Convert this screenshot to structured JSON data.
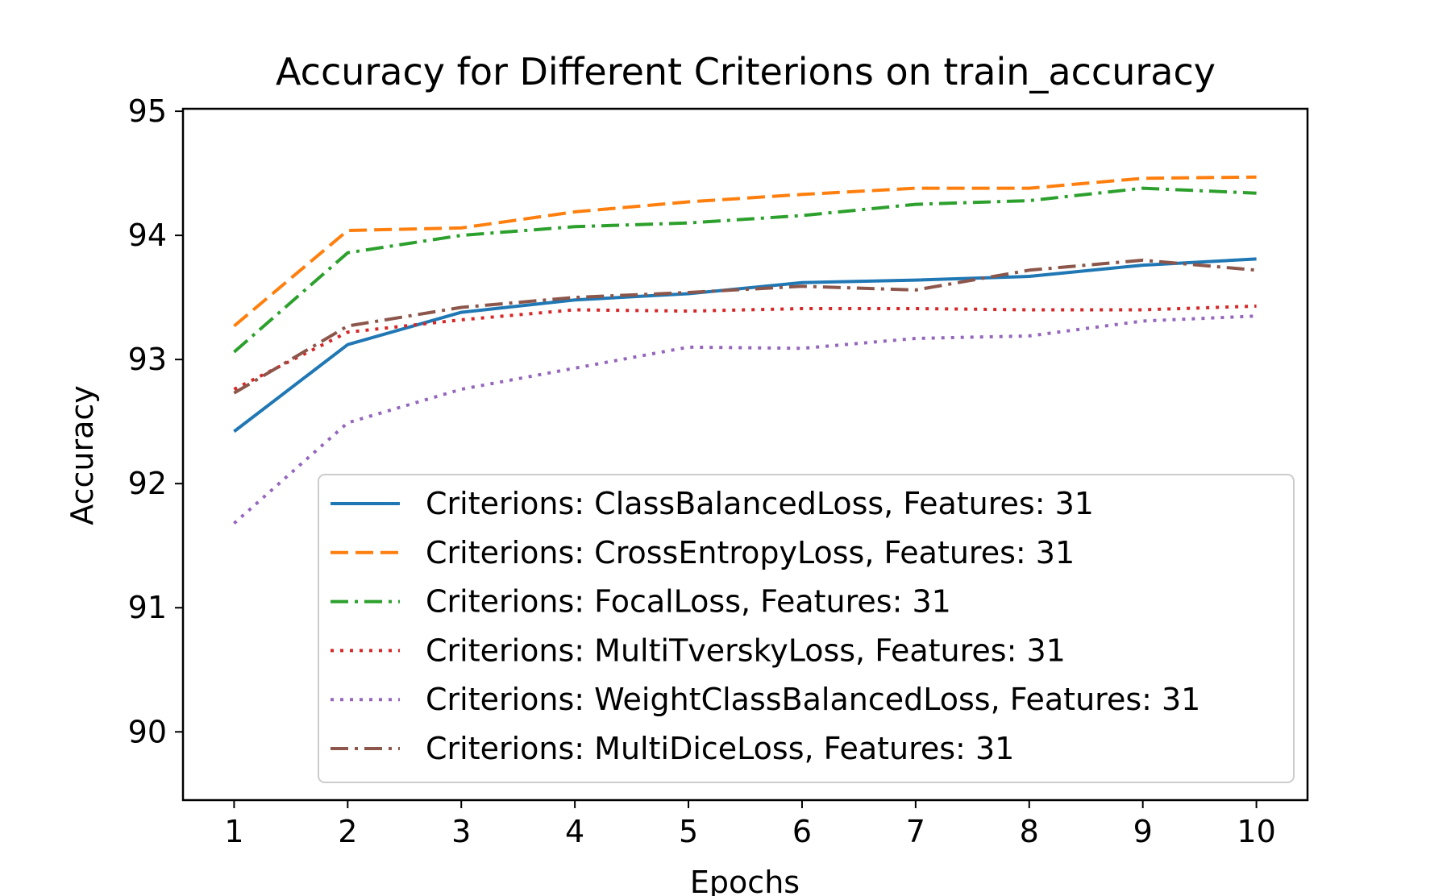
{
  "chart_data": {
    "type": "line",
    "title": "Accuracy for Different Criterions on train_accuracy",
    "xlabel": "Epochs",
    "ylabel": "Accuracy",
    "x": [
      1,
      2,
      3,
      4,
      5,
      6,
      7,
      8,
      9,
      10
    ],
    "xticks": [
      "1",
      "2",
      "3",
      "4",
      "5",
      "6",
      "7",
      "8",
      "9",
      "10"
    ],
    "yticks": [
      "90",
      "91",
      "92",
      "93",
      "94",
      "95"
    ],
    "xlim": [
      0.55,
      10.45
    ],
    "ylim": [
      89.45,
      95.02
    ],
    "grid": false,
    "legend_position": "lower-right",
    "series": [
      {
        "name": "Criterions: ClassBalancedLoss, Features: 31",
        "color": "#1f77b4",
        "dash": "solid",
        "values": [
          92.42,
          93.12,
          93.38,
          93.48,
          93.53,
          93.62,
          93.64,
          93.67,
          93.76,
          93.81
        ]
      },
      {
        "name": "Criterions: CrossEntropyLoss, Features: 31",
        "color": "#ff7f0e",
        "dash": "dashed",
        "values": [
          93.27,
          94.04,
          94.06,
          94.19,
          94.27,
          94.33,
          94.38,
          94.38,
          94.46,
          94.47
        ]
      },
      {
        "name": "Criterions: FocalLoss, Features: 31",
        "color": "#2ca02c",
        "dash": "dashdot",
        "values": [
          93.06,
          93.86,
          94.0,
          94.07,
          94.1,
          94.16,
          94.25,
          94.28,
          94.38,
          94.34
        ]
      },
      {
        "name": "Criterions: MultiTverskyLoss, Features: 31",
        "color": "#d62728",
        "dash": "dotted",
        "values": [
          92.76,
          93.22,
          93.32,
          93.4,
          93.39,
          93.41,
          93.41,
          93.4,
          93.4,
          93.43
        ]
      },
      {
        "name": "Criterions: WeightClassBalancedLoss, Features: 31",
        "color": "#9467bd",
        "dash": "dotted",
        "values": [
          91.68,
          92.49,
          92.76,
          92.93,
          93.1,
          93.09,
          93.17,
          93.19,
          93.31,
          93.35
        ]
      },
      {
        "name": "Criterions: MultiDiceLoss, Features: 31",
        "color": "#8c564b",
        "dash": "dashdot",
        "values": [
          92.73,
          93.27,
          93.42,
          93.5,
          93.54,
          93.59,
          93.56,
          93.72,
          93.8,
          93.72
        ]
      }
    ]
  }
}
